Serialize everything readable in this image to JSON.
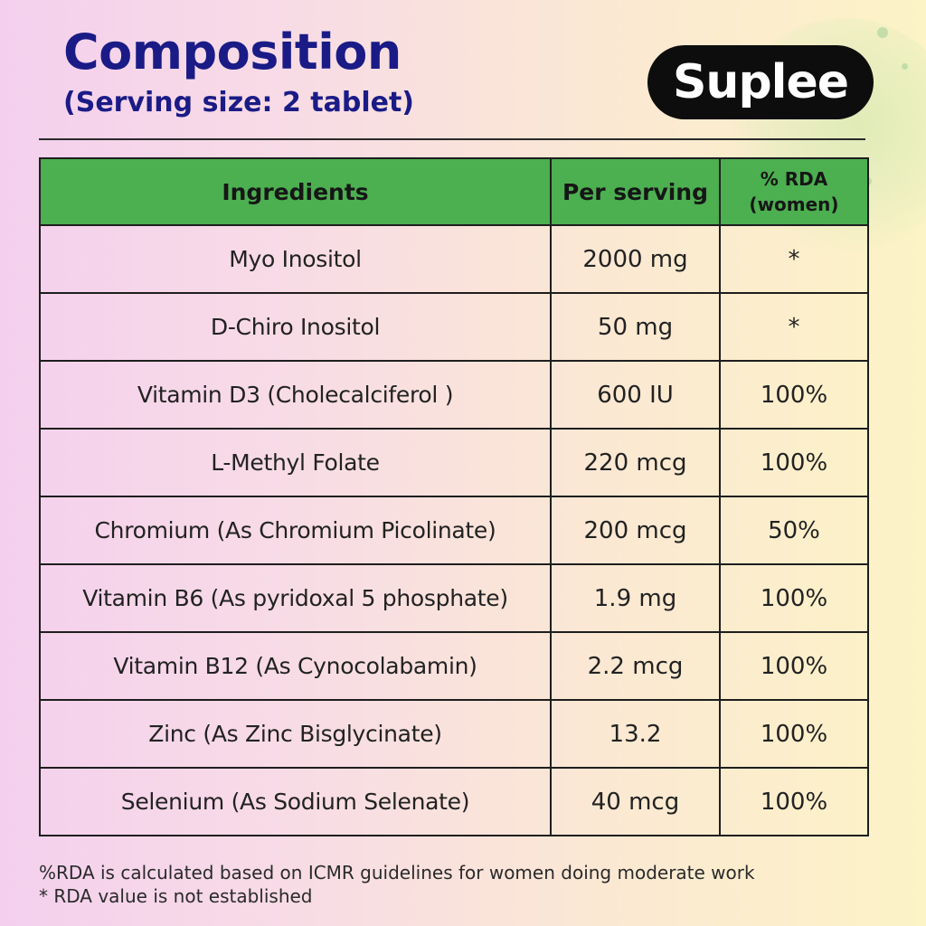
{
  "header": {
    "title": "Composition",
    "subtitle": "(Serving size: 2 tablet)",
    "brand": "Suplee"
  },
  "table": {
    "columns": [
      "Ingredients",
      "Per serving",
      "% RDA",
      "(women)"
    ],
    "rows": [
      {
        "ingredient": "Myo Inositol",
        "per_serving": "2000 mg",
        "rda": "*"
      },
      {
        "ingredient": "D-Chiro Inositol",
        "per_serving": "50 mg",
        "rda": "*"
      },
      {
        "ingredient": "Vitamin D3 (Cholecalciferol )",
        "per_serving": "600 IU",
        "rda": "100%"
      },
      {
        "ingredient": "L-Methyl Folate",
        "per_serving": "220 mcg",
        "rda": "100%"
      },
      {
        "ingredient": "Chromium (As Chromium Picolinate)",
        "per_serving": "200 mcg",
        "rda": "50%"
      },
      {
        "ingredient": "Vitamin B6 (As pyridoxal 5 phosphate)",
        "per_serving": "1.9 mg",
        "rda": "100%"
      },
      {
        "ingredient": "Vitamin B12 (As Cynocolabamin)",
        "per_serving": "2.2 mcg",
        "rda": "100%"
      },
      {
        "ingredient": "Zinc (As Zinc Bisglycinate)",
        "per_serving": "13.2",
        "rda": "100%"
      },
      {
        "ingredient": "Selenium (As Sodium Selenate)",
        "per_serving": "40 mcg",
        "rda": "100%"
      }
    ]
  },
  "footnotes": [
    "%RDA is calculated based on ICMR guidelines for women doing moderate work",
    "*  RDA value is not established"
  ],
  "colors": {
    "title": "#1a1b86",
    "header_fill": "#4caf50",
    "logo_bg": "#0d0d0d",
    "bg_left": "#f4d0ee",
    "bg_right": "#fcf3c6"
  }
}
